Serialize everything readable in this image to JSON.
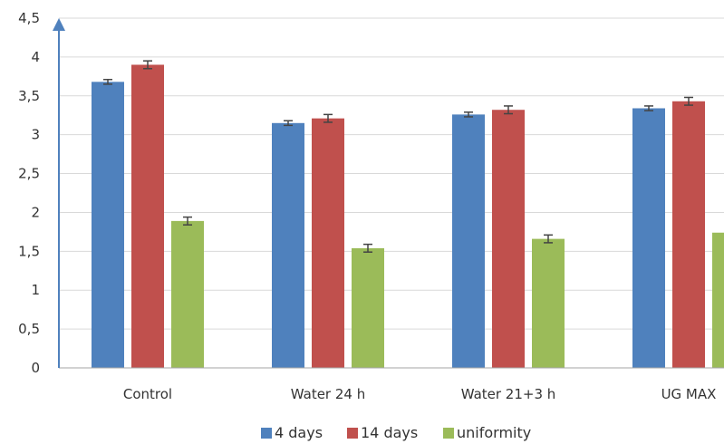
{
  "chart_data": {
    "type": "bar",
    "title": "",
    "xlabel": "",
    "ylabel": "",
    "categories": [
      "Control",
      "Water 24 h",
      "Water 21+3 h",
      "UG MAX"
    ],
    "ylim": [
      0,
      4.5
    ],
    "yticks": [
      0,
      0.5,
      1,
      1.5,
      2,
      2.5,
      3,
      3.5,
      4,
      4.5
    ],
    "ytick_labels": [
      "0",
      "0,5",
      "1",
      "1,5",
      "2",
      "2,5",
      "3",
      "3,5",
      "4",
      "4,5"
    ],
    "grid": true,
    "legend_position": "bottom",
    "error_bars": true,
    "series": [
      {
        "name": "4 days",
        "color": "#4F81BD",
        "values": [
          3.68,
          3.15,
          3.26,
          3.34
        ],
        "errors": [
          0.03,
          0.03,
          0.03,
          0.03
        ]
      },
      {
        "name": "14 days",
        "color": "#C0504D",
        "values": [
          3.9,
          3.21,
          3.32,
          3.43
        ],
        "errors": [
          0.05,
          0.05,
          0.05,
          0.05
        ]
      },
      {
        "name": "uniformity",
        "color": "#9BBB59",
        "values": [
          1.89,
          1.54,
          1.66,
          1.74
        ],
        "errors": [
          0.05,
          0.05,
          0.05,
          0.05
        ]
      }
    ]
  }
}
